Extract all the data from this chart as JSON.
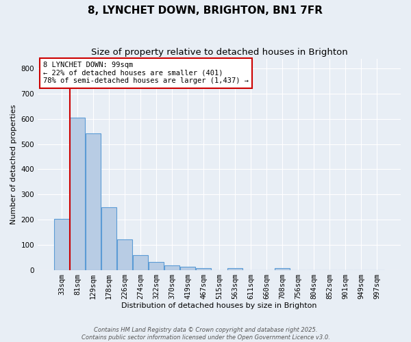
{
  "title": "8, LYNCHET DOWN, BRIGHTON, BN1 7FR",
  "subtitle": "Size of property relative to detached houses in Brighton",
  "xlabel": "Distribution of detached houses by size in Brighton",
  "ylabel": "Number of detached properties",
  "categories": [
    "33sqm",
    "81sqm",
    "129sqm",
    "178sqm",
    "226sqm",
    "274sqm",
    "322sqm",
    "370sqm",
    "419sqm",
    "467sqm",
    "515sqm",
    "563sqm",
    "611sqm",
    "660sqm",
    "708sqm",
    "756sqm",
    "804sqm",
    "852sqm",
    "901sqm",
    "949sqm",
    "997sqm"
  ],
  "values": [
    202,
    605,
    543,
    250,
    120,
    58,
    32,
    17,
    12,
    8,
    0,
    8,
    0,
    0,
    8,
    0,
    0,
    0,
    0,
    0,
    0
  ],
  "bar_color": "#b8cce4",
  "bar_edge_color": "#5b9bd5",
  "bar_edge_width": 0.8,
  "vline_x_index": 1,
  "vline_color": "#cc0000",
  "ylim": [
    0,
    840
  ],
  "yticks": [
    0,
    100,
    200,
    300,
    400,
    500,
    600,
    700,
    800
  ],
  "annotation_text": "8 LYNCHET DOWN: 99sqm\n← 22% of detached houses are smaller (401)\n78% of semi-detached houses are larger (1,437) →",
  "annotation_box_color": "#ffffff",
  "annotation_box_edge_color": "#cc0000",
  "background_color": "#e8eef5",
  "grid_color": "#ffffff",
  "footer_line1": "Contains HM Land Registry data © Crown copyright and database right 2025.",
  "footer_line2": "Contains public sector information licensed under the Open Government Licence v3.0.",
  "title_fontsize": 11,
  "subtitle_fontsize": 9.5,
  "axis_label_fontsize": 8,
  "tick_fontsize": 7.5,
  "annotation_fontsize": 7.5,
  "footer_fontsize": 6
}
